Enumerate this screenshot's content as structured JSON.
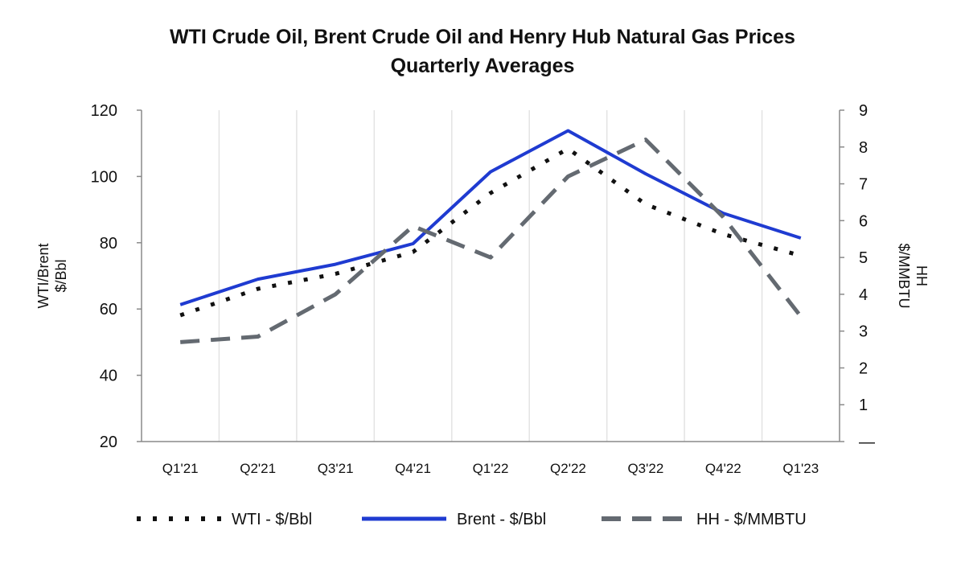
{
  "chart_data": {
    "type": "line",
    "title": "WTI Crude Oil, Brent Crude Oil and Henry Hub Natural Gas Prices",
    "subtitle": "Quarterly Averages",
    "categories": [
      "Q1'21",
      "Q2'21",
      "Q3'21",
      "Q4'21",
      "Q1'22",
      "Q2'22",
      "Q3'22",
      "Q4'22",
      "Q1'23"
    ],
    "ylabel_left": [
      "WTI/Brent",
      "$/Bbl"
    ],
    "ylabel_right": [
      "HH",
      "$/MMBTU"
    ],
    "ylim_left": [
      20,
      120
    ],
    "yticks_left": [
      "20",
      "40",
      "60",
      "80",
      "100",
      "120"
    ],
    "ylim_right": [
      0,
      9
    ],
    "yticks_right": [
      "—",
      "1",
      "2",
      "3",
      "4",
      "5",
      "6",
      "7",
      "8",
      "9"
    ],
    "grid": "vertical",
    "legend_position": "bottom",
    "series": [
      {
        "name": "WTI - $/Bbl",
        "axis": "left",
        "style": "dotted",
        "color": "#111111",
        "values": [
          58.1,
          66.1,
          70.6,
          77.2,
          95.0,
          108.4,
          91.6,
          82.6,
          76.1
        ]
      },
      {
        "name": "Brent - $/Bbl",
        "axis": "left",
        "style": "solid",
        "color": "#1f3bd1",
        "values": [
          61.3,
          69.0,
          73.5,
          79.7,
          101.4,
          113.8,
          100.8,
          88.9,
          81.4
        ]
      },
      {
        "name": "HH - $/MMBTU",
        "axis": "right",
        "style": "dashed",
        "color": "#646a71",
        "values": [
          2.7,
          2.85,
          4.0,
          5.85,
          5.0,
          7.2,
          8.2,
          6.1,
          3.4
        ]
      }
    ]
  }
}
